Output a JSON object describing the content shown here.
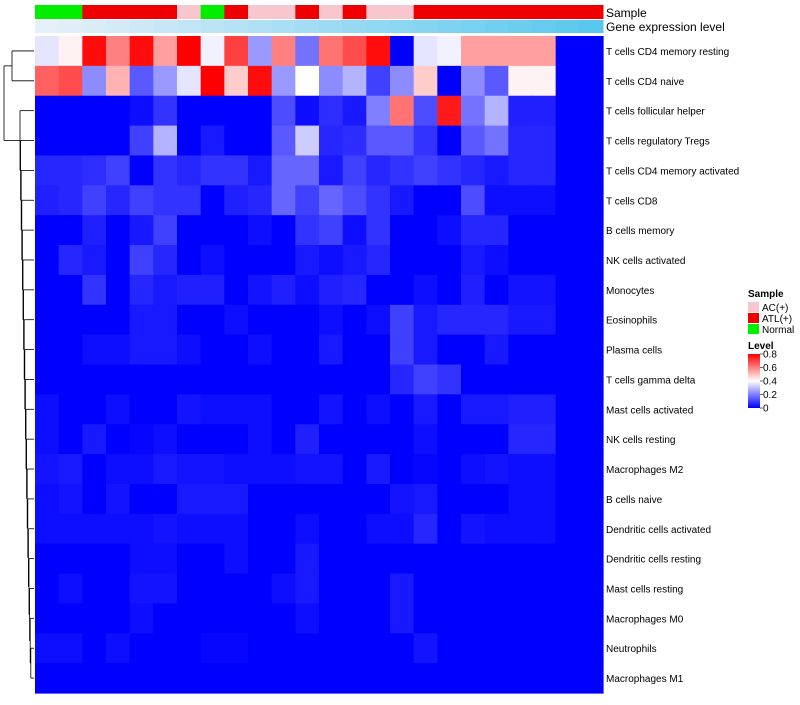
{
  "chart_data": {
    "type": "heatmap",
    "annotation_titles": [
      "Sample",
      "Gene expression level"
    ],
    "sample_annotation": [
      "Normal",
      "Normal",
      "ATL(+)",
      "ATL(+)",
      "ATL(+)",
      "ATL(+)",
      "AC(+)",
      "Normal",
      "ATL(+)",
      "AC(+)",
      "AC(+)",
      "ATL(+)",
      "AC(+)",
      "ATL(+)",
      "AC(+)",
      "AC(+)",
      "ATL(+)",
      "ATL(+)",
      "ATL(+)",
      "ATL(+)",
      "ATL(+)",
      "ATL(+)",
      "ATL(+)",
      "ATL(+)"
    ],
    "expression_level_annotation": [
      0.18,
      0.2,
      0.22,
      0.24,
      0.26,
      0.28,
      0.3,
      0.32,
      0.34,
      0.36,
      0.38,
      0.4,
      0.42,
      0.44,
      0.46,
      0.48,
      0.5,
      0.52,
      0.54,
      0.56,
      0.58,
      0.6,
      0.62,
      0.64
    ],
    "rows": [
      "T cells CD4 memory resting",
      "T cells CD4 naive",
      "T cells follicular helper",
      "T cells regulatory  Tregs",
      "T cells CD4 memory activated",
      "T cells CD8",
      "B cells memory",
      "NK cells activated",
      "Monocytes",
      "Eosinophils",
      "Plasma cells",
      "T cells gamma delta",
      "Mast cells activated",
      "NK cells resting",
      "Macrophages M2",
      "B cells naive",
      "Dendritic cells activated",
      "Dendritic cells resting",
      "Mast cells resting",
      "Macrophages M0",
      "Neutrophils",
      "Macrophages M1"
    ],
    "values": [
      [
        0.36,
        0.42,
        0.78,
        0.6,
        0.78,
        0.55,
        0.8,
        0.38,
        0.7,
        0.24,
        0.6,
        0.18,
        0.62,
        0.68,
        0.78,
        0.0,
        0.36,
        0.38,
        0.55,
        0.55,
        0.55,
        0.55,
        0.0,
        0.0
      ],
      [
        0.65,
        0.68,
        0.22,
        0.52,
        0.14,
        0.24,
        0.36,
        0.8,
        0.48,
        0.78,
        0.24,
        0.4,
        0.22,
        0.28,
        0.1,
        0.22,
        0.48,
        0.0,
        0.22,
        0.14,
        0.42,
        0.42,
        0.0,
        0.0
      ],
      [
        0.0,
        0.0,
        0.0,
        0.0,
        0.02,
        0.08,
        0.0,
        0.0,
        0.0,
        0.0,
        0.12,
        0.02,
        0.07,
        0.04,
        0.2,
        0.62,
        0.12,
        0.76,
        0.18,
        0.28,
        0.05,
        0.05,
        0.0,
        0.0
      ],
      [
        0.0,
        0.0,
        0.0,
        0.0,
        0.1,
        0.28,
        0.0,
        0.04,
        0.0,
        0.0,
        0.14,
        0.32,
        0.06,
        0.07,
        0.14,
        0.14,
        0.08,
        0.0,
        0.14,
        0.18,
        0.06,
        0.06,
        0.0,
        0.0
      ],
      [
        0.06,
        0.06,
        0.07,
        0.1,
        0.0,
        0.08,
        0.06,
        0.08,
        0.08,
        0.04,
        0.16,
        0.16,
        0.04,
        0.1,
        0.06,
        0.08,
        0.1,
        0.08,
        0.06,
        0.04,
        0.06,
        0.06,
        0.0,
        0.0
      ],
      [
        0.05,
        0.06,
        0.1,
        0.06,
        0.1,
        0.08,
        0.08,
        0.0,
        0.05,
        0.06,
        0.16,
        0.1,
        0.16,
        0.12,
        0.08,
        0.04,
        0.0,
        0.0,
        0.12,
        0.02,
        0.02,
        0.02,
        0.0,
        0.0
      ],
      [
        0.0,
        0.0,
        0.05,
        0.0,
        0.04,
        0.1,
        0.0,
        0.0,
        0.0,
        0.02,
        0.0,
        0.08,
        0.1,
        0.02,
        0.08,
        0.0,
        0.0,
        0.02,
        0.06,
        0.06,
        0.0,
        0.0,
        0.0,
        0.0
      ],
      [
        0.0,
        0.06,
        0.04,
        0.0,
        0.1,
        0.06,
        0.0,
        0.02,
        0.0,
        0.0,
        0.0,
        0.04,
        0.02,
        0.04,
        0.06,
        0.0,
        0.0,
        0.0,
        0.04,
        0.02,
        0.0,
        0.0,
        0.0,
        0.0
      ],
      [
        0.0,
        0.0,
        0.08,
        0.0,
        0.06,
        0.04,
        0.05,
        0.05,
        0.0,
        0.03,
        0.05,
        0.02,
        0.05,
        0.06,
        0.0,
        0.0,
        0.02,
        0.0,
        0.05,
        0.0,
        0.03,
        0.03,
        0.0,
        0.0
      ],
      [
        0.0,
        0.0,
        0.0,
        0.0,
        0.04,
        0.04,
        0.0,
        0.0,
        0.02,
        0.0,
        0.0,
        0.0,
        0.02,
        0.0,
        0.02,
        0.1,
        0.04,
        0.06,
        0.06,
        0.06,
        0.04,
        0.04,
        0.0,
        0.0
      ],
      [
        0.0,
        0.0,
        0.02,
        0.02,
        0.04,
        0.04,
        0.02,
        0.0,
        0.0,
        0.02,
        0.0,
        0.0,
        0.04,
        0.0,
        0.0,
        0.1,
        0.04,
        0.0,
        0.0,
        0.04,
        0.0,
        0.0,
        0.0,
        0.0
      ],
      [
        0.0,
        0.0,
        0.0,
        0.0,
        0.0,
        0.0,
        0.0,
        0.0,
        0.0,
        0.0,
        0.0,
        0.0,
        0.0,
        0.0,
        0.0,
        0.06,
        0.1,
        0.08,
        0.0,
        0.0,
        0.0,
        0.0,
        0.0,
        0.0
      ],
      [
        0.02,
        0.0,
        0.0,
        0.02,
        0.0,
        0.0,
        0.03,
        0.02,
        0.02,
        0.02,
        0.0,
        0.0,
        0.03,
        0.0,
        0.02,
        0.0,
        0.04,
        0.0,
        0.04,
        0.04,
        0.05,
        0.05,
        0.0,
        0.0
      ],
      [
        0.02,
        0.0,
        0.04,
        0.0,
        0.01,
        0.02,
        0.0,
        0.0,
        0.0,
        0.02,
        0.0,
        0.05,
        0.0,
        0.0,
        0.0,
        0.0,
        0.02,
        0.0,
        0.0,
        0.0,
        0.06,
        0.06,
        0.0,
        0.0
      ],
      [
        0.03,
        0.04,
        0.0,
        0.02,
        0.02,
        0.04,
        0.03,
        0.03,
        0.02,
        0.02,
        0.02,
        0.03,
        0.03,
        0.0,
        0.04,
        0.0,
        0.01,
        0.0,
        0.02,
        0.03,
        0.02,
        0.02,
        0.0,
        0.0
      ],
      [
        0.02,
        0.03,
        0.0,
        0.03,
        0.0,
        0.0,
        0.04,
        0.04,
        0.04,
        0.0,
        0.0,
        0.0,
        0.0,
        0.0,
        0.0,
        0.03,
        0.04,
        0.0,
        0.0,
        0.0,
        0.02,
        0.02,
        0.0,
        0.0
      ],
      [
        0.02,
        0.02,
        0.02,
        0.02,
        0.02,
        0.03,
        0.02,
        0.02,
        0.02,
        0.0,
        0.0,
        0.02,
        0.0,
        0.0,
        0.02,
        0.02,
        0.06,
        0.0,
        0.03,
        0.02,
        0.02,
        0.02,
        0.0,
        0.0
      ],
      [
        0.0,
        0.0,
        0.0,
        0.0,
        0.02,
        0.02,
        0.0,
        0.0,
        0.02,
        0.0,
        0.0,
        0.04,
        0.0,
        0.0,
        0.0,
        0.0,
        0.0,
        0.0,
        0.0,
        0.0,
        0.0,
        0.0,
        0.0,
        0.0
      ],
      [
        0.0,
        0.02,
        0.0,
        0.0,
        0.03,
        0.03,
        0.0,
        0.0,
        0.0,
        0.0,
        0.02,
        0.04,
        0.0,
        0.0,
        0.0,
        0.04,
        0.0,
        0.0,
        0.0,
        0.0,
        0.0,
        0.0,
        0.0,
        0.0
      ],
      [
        0.0,
        0.0,
        0.0,
        0.0,
        0.02,
        0.0,
        0.0,
        0.0,
        0.0,
        0.0,
        0.0,
        0.02,
        0.0,
        0.0,
        0.0,
        0.04,
        0.0,
        0.0,
        0.0,
        0.0,
        0.0,
        0.0,
        0.0,
        0.0
      ],
      [
        0.02,
        0.02,
        0.0,
        0.02,
        0.0,
        0.0,
        0.0,
        0.01,
        0.01,
        0.0,
        0.0,
        0.0,
        0.0,
        0.0,
        0.0,
        0.0,
        0.03,
        0.0,
        0.0,
        0.0,
        0.0,
        0.0,
        0.0,
        0.0
      ],
      [
        0.0,
        0.0,
        0.0,
        0.0,
        0.0,
        0.0,
        0.0,
        0.0,
        0.0,
        0.0,
        0.0,
        0.0,
        0.0,
        0.0,
        0.0,
        0.0,
        0.0,
        0.0,
        0.0,
        0.0,
        0.0,
        0.0,
        0.0,
        0.0
      ]
    ],
    "legend": {
      "sample_title": "Sample",
      "sample_entries": [
        {
          "label": "AC(+)",
          "color": "#f8c6cf"
        },
        {
          "label": "ATL(+)",
          "color": "#ee0000"
        },
        {
          "label": "Normal",
          "color": "#00ee00"
        }
      ],
      "level_title": "Level",
      "level_ticks": [
        "0.8",
        "0.6",
        "0.4",
        "0.2",
        "0"
      ],
      "level_range": [
        0,
        0.8
      ]
    },
    "color_scale": {
      "low": "#0000ff",
      "mid": "#ffffff",
      "high": "#ff0000",
      "min": 0,
      "mid_value": 0.4,
      "max": 0.8
    },
    "annotation_level_colors": {
      "low": "#e6f0f8",
      "high": "#5ac8ee"
    },
    "dendrogram": "present",
    "dendrogram_color": "#000000"
  }
}
